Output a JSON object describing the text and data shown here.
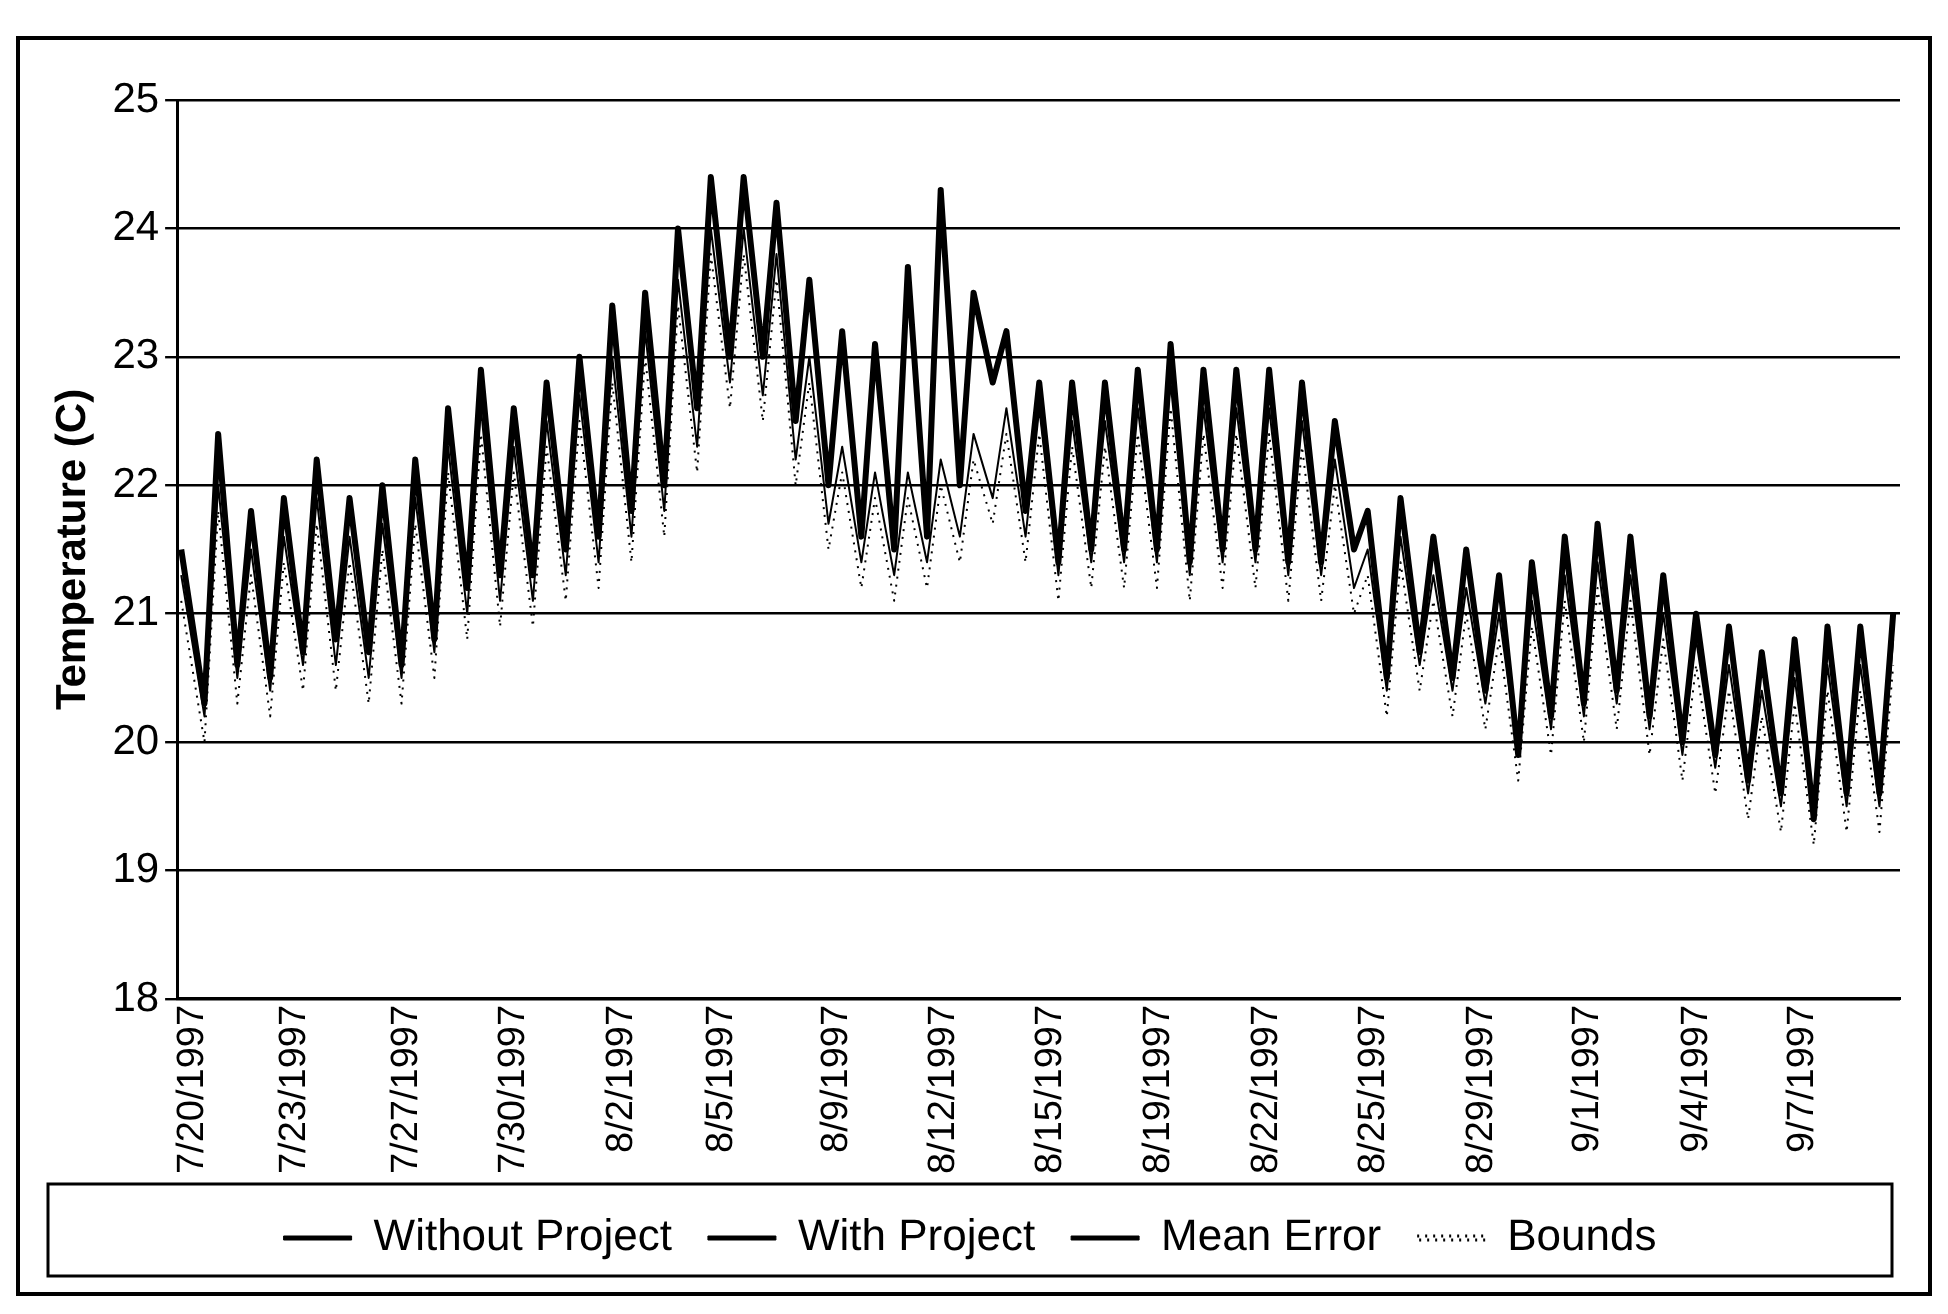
{
  "chart_data": {
    "type": "line",
    "ylabel": "Temperature (C)",
    "legend": "bottom",
    "grid": "y",
    "marker": "none",
    "xlim": [
      "1997-07-20T09:00",
      "1997-09-10T20:00"
    ],
    "xticks": [
      {
        "value": "1997-07-20T20:00",
        "label": "7/20/1997"
      },
      {
        "value": "1997-07-23T23:00",
        "label": "7/23/1997"
      },
      {
        "value": "1997-07-27T09:00",
        "label": "7/27/1997"
      },
      {
        "value": "1997-07-30T15:00",
        "label": "7/30/1997"
      },
      {
        "value": "1997-08-02T22:00",
        "label": "8/2/1997"
      },
      {
        "value": "1997-08-05T23:00",
        "label": "8/5/1997"
      },
      {
        "value": "1997-08-09T11:00",
        "label": "8/9/1997"
      },
      {
        "value": "1997-08-12T17:00",
        "label": "8/12/1997"
      },
      {
        "value": "1997-08-15T23:00",
        "label": "8/15/1997"
      },
      {
        "value": "1997-08-19T06:00",
        "label": "8/19/1997"
      },
      {
        "value": "1997-08-22T13:00",
        "label": "8/22/1997"
      },
      {
        "value": "1997-08-25T19:00",
        "label": "8/25/1997"
      },
      {
        "value": "1997-08-29T02:00",
        "label": "8/29/1997"
      },
      {
        "value": "1997-09-01T08:00",
        "label": "9/1/1997"
      },
      {
        "value": "1997-09-04T15:00",
        "label": "9/4/1997"
      },
      {
        "value": "1997-09-07T21:00",
        "label": "9/7/1997"
      }
    ],
    "ylim": [
      18,
      25
    ],
    "yticks": [
      18,
      19,
      20,
      21,
      22,
      23,
      24,
      25
    ],
    "x": [
      "1997-07-20T12:00",
      "1997-07-21T05:00",
      "1997-07-21T15:00",
      "1997-07-22T05:00",
      "1997-07-22T15:00",
      "1997-07-23T05:00",
      "1997-07-23T15:00",
      "1997-07-24T05:00",
      "1997-07-24T15:00",
      "1997-07-25T05:00",
      "1997-07-25T15:00",
      "1997-07-26T05:00",
      "1997-07-26T15:00",
      "1997-07-27T05:00",
      "1997-07-27T15:00",
      "1997-07-28T05:00",
      "1997-07-28T15:00",
      "1997-07-29T05:00",
      "1997-07-29T15:00",
      "1997-07-30T05:00",
      "1997-07-30T15:00",
      "1997-07-31T05:00",
      "1997-07-31T15:00",
      "1997-08-01T05:00",
      "1997-08-01T15:00",
      "1997-08-02T05:00",
      "1997-08-02T15:00",
      "1997-08-03T05:00",
      "1997-08-03T15:00",
      "1997-08-04T05:00",
      "1997-08-04T15:00",
      "1997-08-05T05:00",
      "1997-08-05T15:00",
      "1997-08-06T05:00",
      "1997-08-06T15:00",
      "1997-08-07T05:00",
      "1997-08-07T15:00",
      "1997-08-08T05:00",
      "1997-08-08T15:00",
      "1997-08-09T05:00",
      "1997-08-09T15:00",
      "1997-08-10T05:00",
      "1997-08-10T15:00",
      "1997-08-11T05:00",
      "1997-08-11T15:00",
      "1997-08-12T05:00",
      "1997-08-12T15:00",
      "1997-08-13T05:00",
      "1997-08-13T15:00",
      "1997-08-14T05:00",
      "1997-08-14T15:00",
      "1997-08-15T05:00",
      "1997-08-15T15:00",
      "1997-08-16T05:00",
      "1997-08-16T15:00",
      "1997-08-17T05:00",
      "1997-08-17T15:00",
      "1997-08-18T05:00",
      "1997-08-18T15:00",
      "1997-08-19T05:00",
      "1997-08-19T15:00",
      "1997-08-20T05:00",
      "1997-08-20T15:00",
      "1997-08-21T05:00",
      "1997-08-21T15:00",
      "1997-08-22T05:00",
      "1997-08-22T15:00",
      "1997-08-23T05:00",
      "1997-08-23T15:00",
      "1997-08-24T05:00",
      "1997-08-24T15:00",
      "1997-08-25T05:00",
      "1997-08-25T15:00",
      "1997-08-26T05:00",
      "1997-08-26T15:00",
      "1997-08-27T05:00",
      "1997-08-27T15:00",
      "1997-08-28T05:00",
      "1997-08-28T15:00",
      "1997-08-29T05:00",
      "1997-08-29T15:00",
      "1997-08-30T05:00",
      "1997-08-30T15:00",
      "1997-08-31T05:00",
      "1997-08-31T15:00",
      "1997-09-01T05:00",
      "1997-09-01T15:00",
      "1997-09-02T05:00",
      "1997-09-02T15:00",
      "1997-09-03T05:00",
      "1997-09-03T15:00",
      "1997-09-04T05:00",
      "1997-09-04T15:00",
      "1997-09-05T05:00",
      "1997-09-05T15:00",
      "1997-09-06T05:00",
      "1997-09-06T15:00",
      "1997-09-07T05:00",
      "1997-09-07T15:00",
      "1997-09-08T05:00",
      "1997-09-08T15:00",
      "1997-09-09T05:00",
      "1997-09-09T15:00",
      "1997-09-10T05:00",
      "1997-09-10T15:00"
    ],
    "series": [
      {
        "name": "Without Project",
        "color": "#000000",
        "values": [
          21.5,
          20.3,
          22.4,
          20.6,
          21.8,
          20.5,
          21.9,
          20.7,
          22.2,
          20.8,
          21.9,
          20.7,
          22.0,
          20.6,
          22.2,
          20.8,
          22.6,
          21.2,
          22.9,
          21.3,
          22.6,
          21.3,
          22.8,
          21.5,
          23.0,
          21.6,
          23.4,
          21.8,
          23.5,
          22.0,
          24.0,
          22.6,
          24.4,
          23.0,
          24.4,
          23.0,
          24.2,
          22.5,
          23.6,
          22.0,
          23.2,
          21.6,
          23.1,
          21.5,
          23.7,
          21.6,
          24.3,
          22.0,
          23.5,
          22.8,
          23.2,
          21.8,
          22.8,
          21.4,
          22.8,
          21.5,
          22.8,
          21.5,
          22.9,
          21.5,
          23.1,
          21.4,
          22.9,
          21.5,
          22.9,
          21.5,
          22.9,
          21.4,
          22.8,
          21.4,
          22.5,
          21.5,
          21.8,
          20.5,
          21.9,
          20.7,
          21.6,
          20.5,
          21.5,
          20.4,
          21.3,
          19.9,
          21.4,
          20.2,
          21.6,
          20.3,
          21.7,
          20.4,
          21.6,
          20.2,
          21.3,
          20.0,
          21.0,
          19.9,
          20.9,
          19.7,
          20.7,
          19.6,
          20.8,
          19.4,
          20.9,
          19.6,
          20.9,
          19.6,
          21.0
        ]
      },
      {
        "name": "With Project",
        "color": "#000000",
        "values": [
          21.3,
          20.2,
          22.0,
          20.5,
          21.5,
          20.4,
          21.6,
          20.6,
          21.9,
          20.6,
          21.6,
          20.5,
          21.7,
          20.5,
          21.9,
          20.7,
          22.3,
          21.0,
          22.6,
          21.1,
          22.3,
          21.1,
          22.5,
          21.3,
          22.7,
          21.4,
          23.0,
          21.6,
          23.2,
          21.8,
          23.6,
          22.3,
          24.0,
          22.8,
          24.0,
          22.7,
          23.8,
          22.2,
          23.0,
          21.7,
          22.3,
          21.4,
          22.1,
          21.3,
          22.1,
          21.4,
          22.2,
          21.6,
          22.4,
          21.9,
          22.6,
          21.6,
          22.6,
          21.3,
          22.5,
          21.4,
          22.5,
          21.4,
          22.6,
          21.4,
          22.8,
          21.3,
          22.6,
          21.4,
          22.6,
          21.4,
          22.6,
          21.3,
          22.5,
          21.3,
          22.2,
          21.2,
          21.5,
          20.4,
          21.6,
          20.6,
          21.3,
          20.4,
          21.2,
          20.3,
          21.0,
          19.9,
          21.1,
          20.1,
          21.3,
          20.2,
          21.4,
          20.3,
          21.3,
          20.1,
          21.0,
          19.9,
          20.8,
          19.8,
          20.6,
          19.6,
          20.4,
          19.5,
          20.5,
          19.4,
          20.6,
          19.5,
          20.6,
          19.5,
          20.8
        ]
      },
      {
        "name": "Mean Error",
        "color": "#000000",
        "values": [
          null,
          null,
          null,
          null,
          null,
          null,
          null,
          null,
          null,
          null,
          null,
          null,
          null,
          null,
          null,
          null,
          null,
          null,
          null,
          null,
          null,
          null,
          null,
          null,
          null,
          null,
          null,
          null,
          null,
          null,
          null,
          null,
          null,
          null,
          null,
          null,
          null,
          null,
          null,
          null,
          null,
          null,
          null,
          null,
          null,
          null,
          null,
          null,
          null,
          null,
          null,
          null,
          null,
          null,
          null,
          null,
          null,
          null,
          null,
          null,
          null,
          null,
          null,
          null,
          null,
          null,
          null,
          null,
          null,
          null,
          null,
          null,
          null,
          null,
          null,
          null,
          null,
          null,
          null,
          null,
          null,
          null,
          null,
          null,
          null,
          null,
          null,
          null,
          null,
          null,
          null,
          null,
          null,
          null,
          null,
          null,
          null,
          null,
          null,
          null,
          null,
          null,
          null,
          null,
          null
        ]
      },
      {
        "name": "Bounds",
        "color": "#000000",
        "line_style": "dotted",
        "values": [
          21.1,
          20.0,
          21.8,
          20.3,
          21.3,
          20.2,
          21.4,
          20.4,
          21.7,
          20.4,
          21.4,
          20.3,
          21.5,
          20.3,
          21.7,
          20.5,
          22.1,
          20.8,
          22.4,
          20.9,
          22.1,
          20.9,
          22.3,
          21.1,
          22.5,
          21.2,
          22.8,
          21.4,
          23.0,
          21.6,
          23.4,
          22.1,
          23.8,
          22.6,
          23.8,
          22.5,
          23.6,
          22.0,
          22.8,
          21.5,
          22.1,
          21.2,
          21.9,
          21.1,
          21.9,
          21.2,
          22.0,
          21.4,
          22.2,
          21.7,
          22.4,
          21.4,
          22.4,
          21.1,
          22.3,
          21.2,
          22.3,
          21.2,
          22.4,
          21.2,
          22.6,
          21.1,
          22.4,
          21.2,
          22.4,
          21.2,
          22.4,
          21.1,
          22.3,
          21.1,
          22.0,
          21.0,
          21.3,
          20.2,
          21.4,
          20.4,
          21.1,
          20.2,
          21.0,
          20.1,
          20.8,
          19.7,
          20.9,
          19.9,
          21.1,
          20.0,
          21.2,
          20.1,
          21.1,
          19.9,
          20.8,
          19.7,
          20.6,
          19.6,
          20.4,
          19.4,
          20.2,
          19.3,
          20.3,
          19.2,
          20.4,
          19.3,
          20.4,
          19.3,
          20.6
        ]
      }
    ]
  }
}
